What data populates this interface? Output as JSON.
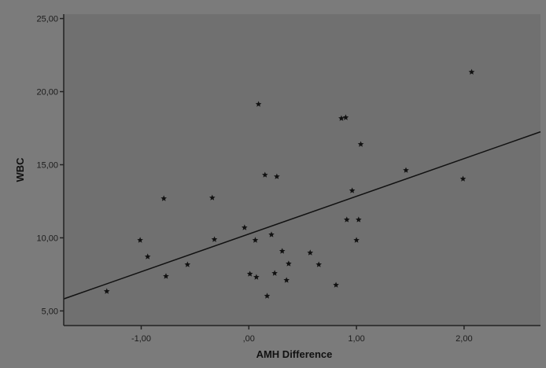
{
  "chart_data": {
    "type": "scatter",
    "title": "",
    "xlabel": "AMH Difference",
    "ylabel": "WBC",
    "xlim": [
      -1.72,
      2.71
    ],
    "ylim": [
      4.0,
      25.3
    ],
    "xticks": [
      -1,
      0,
      1,
      2
    ],
    "xtick_labels": [
      "-1,00",
      ",00",
      "1,00",
      "2,00"
    ],
    "yticks": [
      5,
      10,
      15,
      20,
      25
    ],
    "ytick_labels": [
      "5,00",
      "10,00",
      "15,00",
      "20,00",
      "25,00"
    ],
    "grid": false,
    "marker": "star",
    "colors": {
      "background": "#7b7b7b",
      "plot_area": "#707070",
      "points": "#111111",
      "line": "#111111"
    },
    "points": [
      [
        -1.32,
        6.34
      ],
      [
        -1.01,
        9.84
      ],
      [
        -0.94,
        8.71
      ],
      [
        -0.79,
        12.69
      ],
      [
        -0.77,
        7.37
      ],
      [
        -0.57,
        8.17
      ],
      [
        -0.34,
        12.74
      ],
      [
        -0.32,
        9.89
      ],
      [
        -0.04,
        10.7
      ],
      [
        0.01,
        7.53
      ],
      [
        0.06,
        9.84
      ],
      [
        0.07,
        7.31
      ],
      [
        0.09,
        19.14
      ],
      [
        0.15,
        14.3
      ],
      [
        0.17,
        6.02
      ],
      [
        0.21,
        10.22
      ],
      [
        0.24,
        7.58
      ],
      [
        0.26,
        14.19
      ],
      [
        0.31,
        9.09
      ],
      [
        0.37,
        8.23
      ],
      [
        0.35,
        7.1
      ],
      [
        0.57,
        8.98
      ],
      [
        0.65,
        8.17
      ],
      [
        0.81,
        6.77
      ],
      [
        0.86,
        18.17
      ],
      [
        0.9,
        18.23
      ],
      [
        0.91,
        11.24
      ],
      [
        0.96,
        13.23
      ],
      [
        1.0,
        9.84
      ],
      [
        1.02,
        11.24
      ],
      [
        1.04,
        16.4
      ],
      [
        1.46,
        14.62
      ],
      [
        1.99,
        14.03
      ],
      [
        2.07,
        21.34
      ]
    ],
    "fit_line": {
      "slope": 2.58,
      "intercept": 10.26
    }
  }
}
